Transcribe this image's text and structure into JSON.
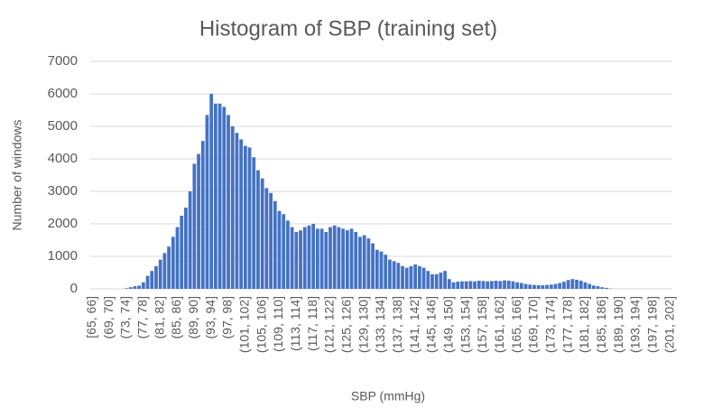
{
  "chart_data": {
    "type": "bar",
    "title": "Histogram of SBP (training set)",
    "x_label": "SBP (mmHg)",
    "y_label": "Number of windows",
    "categories": [
      "[65, 66]",
      null,
      null,
      null,
      "(69, 70]",
      null,
      null,
      null,
      "(73, 74]",
      null,
      null,
      null,
      "(77, 78]",
      null,
      null,
      null,
      "(81, 82]",
      null,
      null,
      null,
      "(85, 86]",
      null,
      null,
      null,
      "(89, 90]",
      null,
      null,
      null,
      "(93, 94]",
      null,
      null,
      null,
      "(97, 98]",
      null,
      null,
      null,
      "(101, 102]",
      null,
      null,
      null,
      "(105, 106]",
      null,
      null,
      null,
      "(109, 110]",
      null,
      null,
      null,
      "(113, 114]",
      null,
      null,
      null,
      "(117, 118]",
      null,
      null,
      null,
      "(121, 122]",
      null,
      null,
      null,
      "(125, 126]",
      null,
      null,
      null,
      "(129, 130]",
      null,
      null,
      null,
      "(133, 134]",
      null,
      null,
      null,
      "(137, 138]",
      null,
      null,
      null,
      "(141, 142]",
      null,
      null,
      null,
      "(145, 146]",
      null,
      null,
      null,
      "(149, 150]",
      null,
      null,
      null,
      "(153, 154]",
      null,
      null,
      null,
      "(157, 158]",
      null,
      null,
      null,
      "(161, 162]",
      null,
      null,
      null,
      "(165, 166]",
      null,
      null,
      null,
      "(169, 170]",
      null,
      null,
      null,
      "(173, 174]",
      null,
      null,
      null,
      "(177, 178]",
      null,
      null,
      null,
      "(181, 182]",
      null,
      null,
      null,
      "(185, 186]",
      null,
      null,
      null,
      "(189, 190]",
      null,
      null,
      null,
      "(193, 194]",
      null,
      null,
      null,
      "(197, 198]",
      null,
      null,
      null,
      "(201, 202]"
    ],
    "values": [
      0,
      0,
      0,
      0,
      0,
      0,
      0,
      0,
      20,
      50,
      80,
      100,
      200,
      400,
      550,
      700,
      900,
      1100,
      1300,
      1600,
      1900,
      2250,
      2500,
      3000,
      3850,
      4150,
      4550,
      5350,
      6000,
      5700,
      5700,
      5600,
      5350,
      5000,
      4800,
      4600,
      4400,
      4350,
      4050,
      3650,
      3400,
      3100,
      2950,
      2700,
      2400,
      2300,
      2100,
      1900,
      1750,
      1800,
      1900,
      1950,
      2000,
      1850,
      1850,
      1750,
      1900,
      1950,
      1900,
      1850,
      1800,
      1850,
      1750,
      1600,
      1650,
      1550,
      1400,
      1200,
      1150,
      1050,
      900,
      850,
      800,
      700,
      650,
      700,
      750,
      700,
      650,
      550,
      450,
      450,
      500,
      550,
      300,
      200,
      220,
      230,
      230,
      240,
      230,
      250,
      240,
      230,
      240,
      250,
      240,
      260,
      250,
      230,
      200,
      180,
      150,
      130,
      120,
      110,
      110,
      120,
      130,
      150,
      180,
      220,
      270,
      300,
      280,
      250,
      200,
      150,
      100,
      80,
      50,
      30,
      10,
      0,
      0,
      0,
      0,
      0,
      0,
      0,
      0,
      0,
      0,
      0,
      0,
      0,
      0
    ],
    "color": "#4472c4",
    "ylim": [
      0,
      7000
    ],
    "yticks": [
      0,
      1000,
      2000,
      3000,
      4000,
      5000,
      6000,
      7000
    ],
    "grid": true
  }
}
